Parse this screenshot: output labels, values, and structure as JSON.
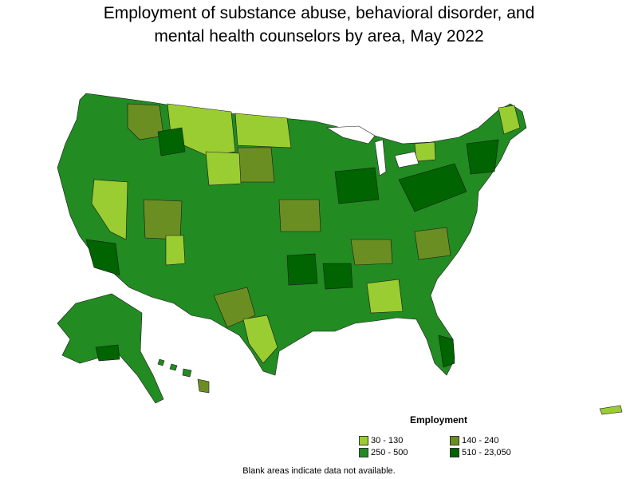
{
  "title": {
    "line1": "Employment of substance abuse, behavioral disorder, and",
    "line2": "mental health counselors by area, May 2022"
  },
  "legend": {
    "title": "Employment",
    "items": [
      {
        "label": "30 - 130",
        "color": "#9acd32"
      },
      {
        "label": "140 - 240",
        "color": "#6b8e23"
      },
      {
        "label": "250 - 500",
        "color": "#228b22"
      },
      {
        "label": "510 - 23,050",
        "color": "#006400"
      }
    ]
  },
  "footnote": "Blank areas indicate data not available."
}
